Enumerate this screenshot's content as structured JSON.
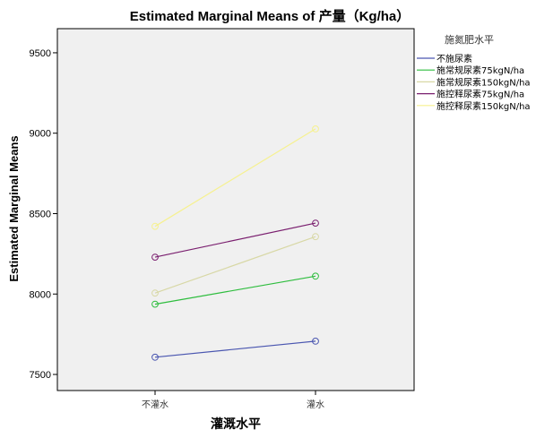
{
  "chart_data": {
    "type": "line",
    "title": "Estimated Marginal Means of 产量（Kg/ha）",
    "xlabel": "灌溉水平",
    "ylabel": "Estimated Marginal Means",
    "categories": [
      "不灌水",
      "灌水"
    ],
    "ylim": [
      7400,
      9650
    ],
    "yticks": [
      7500,
      8000,
      8500,
      9000,
      9500
    ],
    "grid": false,
    "legend_title": "施氮肥水平",
    "legend_position": "right",
    "marker": "open-circle",
    "series": [
      {
        "name": "不施尿素",
        "color": "#4a56b0",
        "values": [
          7607,
          7707
        ]
      },
      {
        "name": "施常规尿素75kgN/ha",
        "color": "#2ebd3e",
        "values": [
          7937,
          8111
        ]
      },
      {
        "name": "施常规尿素150kgN/ha",
        "color": "#d8d8a6",
        "values": [
          8006,
          8357
        ]
      },
      {
        "name": "施控释尿素75kgN/ha",
        "color": "#7a1f6f",
        "values": [
          8229,
          8441
        ]
      },
      {
        "name": "施控释尿素150kgN/ha",
        "color": "#f6f18f",
        "values": [
          8421,
          9027
        ]
      }
    ]
  }
}
